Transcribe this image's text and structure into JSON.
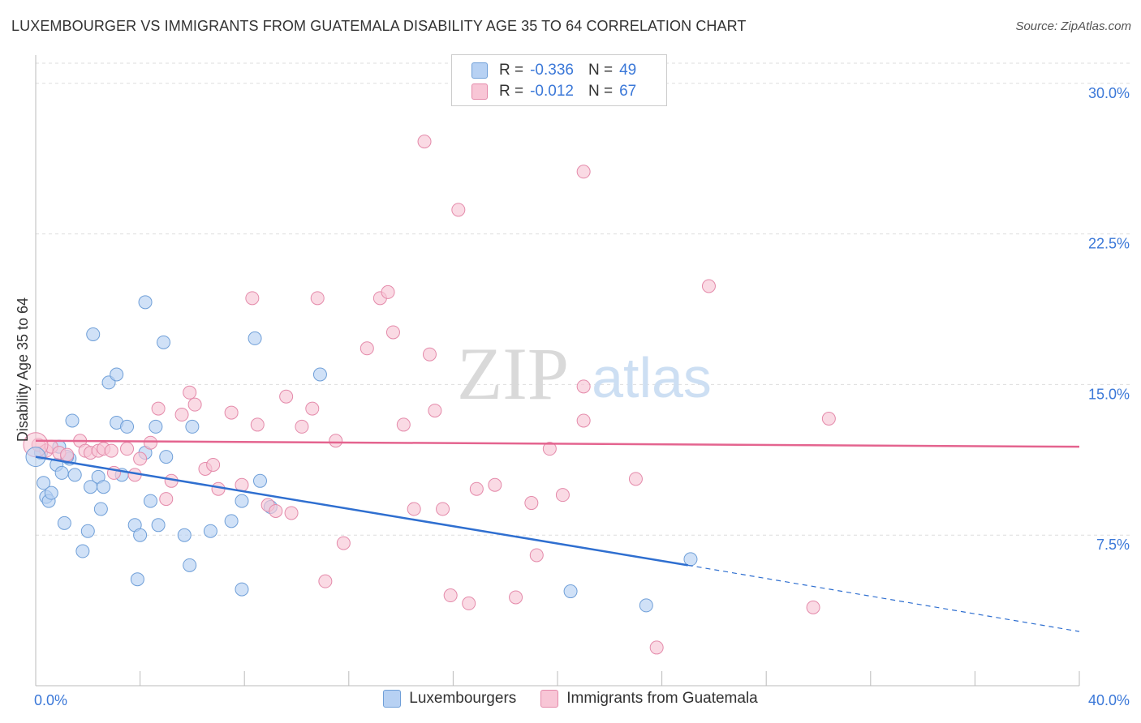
{
  "title": "LUXEMBOURGER VS IMMIGRANTS FROM GUATEMALA DISABILITY AGE 35 TO 64 CORRELATION CHART",
  "source": "Source: ZipAtlas.com",
  "watermark": {
    "zip": "ZIP",
    "atlas": "atlas"
  },
  "stats": {
    "r_label": "R =",
    "n_label": "N =",
    "rows": [
      {
        "r": "-0.336",
        "n": "49"
      },
      {
        "r": "-0.012",
        "n": "67"
      }
    ]
  },
  "colors": {
    "blue_fill": "#b7d1f3",
    "blue_stroke": "#6f9fd8",
    "blue_line": "#2f6fd0",
    "pink_fill": "#f8c6d6",
    "pink_stroke": "#e48aaa",
    "pink_line": "#e4648f",
    "tick_label": "#3b78d8",
    "grid": "#dddddd"
  },
  "chart_data": {
    "type": "scatter",
    "title": "LUXEMBOURGER VS IMMIGRANTS FROM GUATEMALA DISABILITY AGE 35 TO 64 CORRELATION CHART",
    "xlabel": "",
    "ylabel": "Disability Age 35 to 64",
    "xlim": [
      0,
      40
    ],
    "ylim": [
      0,
      31
    ],
    "x_tick_labels": [
      "0.0%",
      "40.0%"
    ],
    "y_ticks": [
      7.5,
      15.0,
      22.5,
      30.0
    ],
    "y_tick_labels": [
      "7.5%",
      "15.0%",
      "22.5%",
      "30.0%"
    ],
    "grid": true,
    "legend_position": "bottom",
    "series": [
      {
        "name": "Luxembourgers",
        "r": -0.336,
        "n": 49,
        "trend": {
          "x0": 0,
          "y0": 11.4,
          "x1": 25.0,
          "y1": 6.0,
          "dash_to_x": 40,
          "dash_to_y": 2.7
        },
        "points": [
          [
            0.2,
            11.6
          ],
          [
            0.3,
            10.1
          ],
          [
            0.4,
            9.4
          ],
          [
            0.5,
            9.2
          ],
          [
            0.6,
            9.6
          ],
          [
            0.8,
            11.0
          ],
          [
            0.9,
            11.9
          ],
          [
            1.0,
            10.6
          ],
          [
            1.1,
            8.1
          ],
          [
            1.3,
            11.3
          ],
          [
            1.4,
            13.2
          ],
          [
            1.5,
            10.5
          ],
          [
            1.8,
            6.7
          ],
          [
            2.0,
            7.7
          ],
          [
            2.1,
            9.9
          ],
          [
            2.2,
            17.5
          ],
          [
            2.4,
            10.4
          ],
          [
            2.5,
            8.8
          ],
          [
            2.6,
            9.9
          ],
          [
            2.8,
            15.1
          ],
          [
            3.1,
            15.5
          ],
          [
            3.1,
            13.1
          ],
          [
            3.3,
            10.5
          ],
          [
            3.5,
            12.9
          ],
          [
            3.8,
            8.0
          ],
          [
            3.9,
            5.3
          ],
          [
            4.0,
            7.5
          ],
          [
            4.2,
            19.1
          ],
          [
            4.2,
            11.6
          ],
          [
            4.4,
            9.2
          ],
          [
            4.6,
            12.9
          ],
          [
            4.7,
            8.0
          ],
          [
            4.9,
            17.1
          ],
          [
            5.0,
            11.4
          ],
          [
            5.7,
            7.5
          ],
          [
            5.9,
            6.0
          ],
          [
            6.0,
            12.9
          ],
          [
            6.7,
            7.7
          ],
          [
            7.5,
            8.2
          ],
          [
            7.9,
            9.2
          ],
          [
            7.9,
            4.8
          ],
          [
            8.4,
            17.3
          ],
          [
            8.6,
            10.2
          ],
          [
            9.0,
            8.9
          ],
          [
            10.9,
            15.5
          ],
          [
            20.5,
            4.7
          ],
          [
            23.4,
            4.0
          ],
          [
            25.1,
            6.3
          ],
          [
            1.2,
            11.4
          ]
        ]
      },
      {
        "name": "Immigrants from Guatemala",
        "r": -0.012,
        "n": 67,
        "trend": {
          "x0": 0,
          "y0": 12.2,
          "x1": 40,
          "y1": 11.9
        },
        "points": [
          [
            0.1,
            12.0
          ],
          [
            0.4,
            11.7
          ],
          [
            0.6,
            11.9
          ],
          [
            0.9,
            11.6
          ],
          [
            1.2,
            11.5
          ],
          [
            1.7,
            12.2
          ],
          [
            1.9,
            11.7
          ],
          [
            2.1,
            11.6
          ],
          [
            2.4,
            11.7
          ],
          [
            2.6,
            11.8
          ],
          [
            2.9,
            11.7
          ],
          [
            3.0,
            10.6
          ],
          [
            3.5,
            11.8
          ],
          [
            3.8,
            10.5
          ],
          [
            4.0,
            11.3
          ],
          [
            4.4,
            12.1
          ],
          [
            4.7,
            13.8
          ],
          [
            5.0,
            9.3
          ],
          [
            5.2,
            10.2
          ],
          [
            5.6,
            13.5
          ],
          [
            5.9,
            14.6
          ],
          [
            6.1,
            14.0
          ],
          [
            6.5,
            10.8
          ],
          [
            6.8,
            11.0
          ],
          [
            7.0,
            9.8
          ],
          [
            7.5,
            13.6
          ],
          [
            7.9,
            10.0
          ],
          [
            8.3,
            19.3
          ],
          [
            8.5,
            13.0
          ],
          [
            8.9,
            9.0
          ],
          [
            9.2,
            8.7
          ],
          [
            9.6,
            14.4
          ],
          [
            9.8,
            8.6
          ],
          [
            10.2,
            12.9
          ],
          [
            10.6,
            13.8
          ],
          [
            10.8,
            19.3
          ],
          [
            11.1,
            5.2
          ],
          [
            11.5,
            12.2
          ],
          [
            11.8,
            7.1
          ],
          [
            12.7,
            16.8
          ],
          [
            13.2,
            19.3
          ],
          [
            13.5,
            19.6
          ],
          [
            13.7,
            17.6
          ],
          [
            14.1,
            13.0
          ],
          [
            14.5,
            8.8
          ],
          [
            14.9,
            27.1
          ],
          [
            15.1,
            16.5
          ],
          [
            15.3,
            13.7
          ],
          [
            15.6,
            8.8
          ],
          [
            15.9,
            4.5
          ],
          [
            16.2,
            23.7
          ],
          [
            16.6,
            4.1
          ],
          [
            16.9,
            9.8
          ],
          [
            17.6,
            10.0
          ],
          [
            18.4,
            4.4
          ],
          [
            19.0,
            9.1
          ],
          [
            19.2,
            6.5
          ],
          [
            19.7,
            11.8
          ],
          [
            20.2,
            9.5
          ],
          [
            21.0,
            13.2
          ],
          [
            21.0,
            14.9
          ],
          [
            21.0,
            25.6
          ],
          [
            23.0,
            10.3
          ],
          [
            23.8,
            1.9
          ],
          [
            25.8,
            19.9
          ],
          [
            29.8,
            3.9
          ],
          [
            30.4,
            13.3
          ]
        ]
      }
    ]
  }
}
